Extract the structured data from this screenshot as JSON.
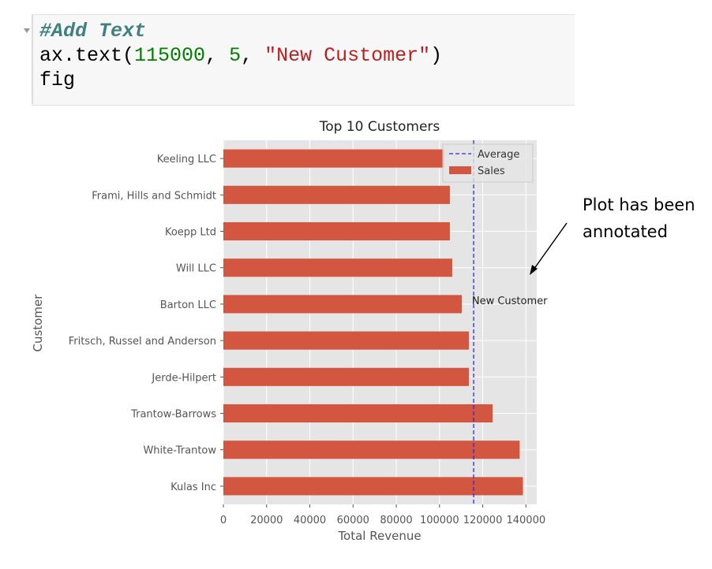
{
  "code_cell": {
    "lines": [
      [
        "#Add Text"
      ],
      [
        "ax.text(",
        "115000",
        ", ",
        "5",
        ", ",
        "\"New Customer\"",
        ")"
      ],
      [
        "fig"
      ]
    ]
  },
  "chart_data": {
    "type": "barh",
    "title": "Top 10 Customers",
    "x_label": "Total Revenue",
    "y_label": "Customer",
    "categories": [
      "Kulas Inc",
      "White-Trantow",
      "Trantow-Barrows",
      "Jerde-Hilpert",
      "Fritsch, Russel and Anderson",
      "Barton LLC",
      "Will LLC",
      "Koepp Ltd",
      "Frami, Hills and Schmidt",
      "Keeling LLC"
    ],
    "series": [
      {
        "name": "Sales",
        "color": "#d35640",
        "values": [
          138600,
          137100,
          124600,
          113600,
          113600,
          110300,
          105900,
          104800,
          104800,
          102200
        ]
      }
    ],
    "reference_line": {
      "name": "Average",
      "value": 115800,
      "color": "#2a2ae0",
      "style": "dashed"
    },
    "annotation": {
      "text": "New Customer",
      "x": 115000,
      "y": 5
    },
    "xlim": [
      0,
      145000
    ],
    "xticks": [
      0,
      20000,
      40000,
      60000,
      80000,
      100000,
      120000,
      140000
    ],
    "grid": true,
    "legend": "upper right"
  },
  "note": {
    "lines": [
      "Plot has been",
      "annotated"
    ]
  }
}
